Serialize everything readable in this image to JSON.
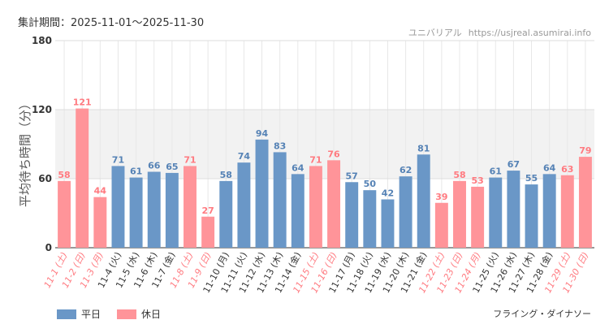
{
  "header": {
    "period_label": "集計期間：2025-11-01～2025-11-30",
    "site_name": "ユニバリアル",
    "site_url": "https://usjreal.asumirai.info"
  },
  "footer": {
    "attraction_name": "フライング・ダイナソー"
  },
  "colors": {
    "weekday": "#6a97c7",
    "holiday": "#ff9499",
    "weekday_label": "#5582b5",
    "holiday_label": "#ff7a80",
    "weekday_tick": "#333333",
    "holiday_tick": "#ff7a80"
  },
  "chart_data": {
    "type": "bar",
    "ylabel": "平均待ち時間（分）",
    "ylim": [
      0,
      180
    ],
    "yticks": [
      "0",
      "60",
      "120",
      "180"
    ],
    "grid": true,
    "legend": [
      {
        "key": "weekday",
        "label": "平日"
      },
      {
        "key": "holiday",
        "label": "休日"
      }
    ],
    "categories": [
      "11-1 (土)",
      "11-2 (日)",
      "11-3 (月)",
      "11-4 (火)",
      "11-5 (水)",
      "11-6 (木)",
      "11-7 (金)",
      "11-8 (土)",
      "11-9 (日)",
      "11-10 (月)",
      "11-11 (火)",
      "11-12 (水)",
      "11-13 (木)",
      "11-14 (金)",
      "11-15 (土)",
      "11-16 (日)",
      "11-17 (月)",
      "11-18 (火)",
      "11-19 (水)",
      "11-20 (木)",
      "11-21 (金)",
      "11-22 (土)",
      "11-23 (日)",
      "11-24 (月)",
      "11-25 (火)",
      "11-26 (水)",
      "11-27 (木)",
      "11-28 (金)",
      "11-29 (土)",
      "11-30 (日)"
    ],
    "values": [
      58,
      121,
      44,
      71,
      61,
      66,
      65,
      71,
      27,
      58,
      74,
      94,
      83,
      64,
      71,
      76,
      57,
      50,
      42,
      62,
      81,
      39,
      58,
      53,
      61,
      67,
      55,
      64,
      63,
      79
    ],
    "value_labels": [
      "58",
      "121",
      "44",
      "71",
      "61",
      "66",
      "65",
      "71",
      "27",
      "58",
      "74",
      "94",
      "83",
      "64",
      "71",
      "76",
      "57",
      "50",
      "42",
      "62",
      "81",
      "39",
      "58",
      "53",
      "61",
      "67",
      "55",
      "64",
      "63",
      "79"
    ],
    "day_type": [
      "holiday",
      "holiday",
      "holiday",
      "weekday",
      "weekday",
      "weekday",
      "weekday",
      "holiday",
      "holiday",
      "weekday",
      "weekday",
      "weekday",
      "weekday",
      "weekday",
      "holiday",
      "holiday",
      "weekday",
      "weekday",
      "weekday",
      "weekday",
      "weekday",
      "holiday",
      "holiday",
      "holiday",
      "weekday",
      "weekday",
      "weekday",
      "weekday",
      "holiday",
      "holiday"
    ]
  }
}
